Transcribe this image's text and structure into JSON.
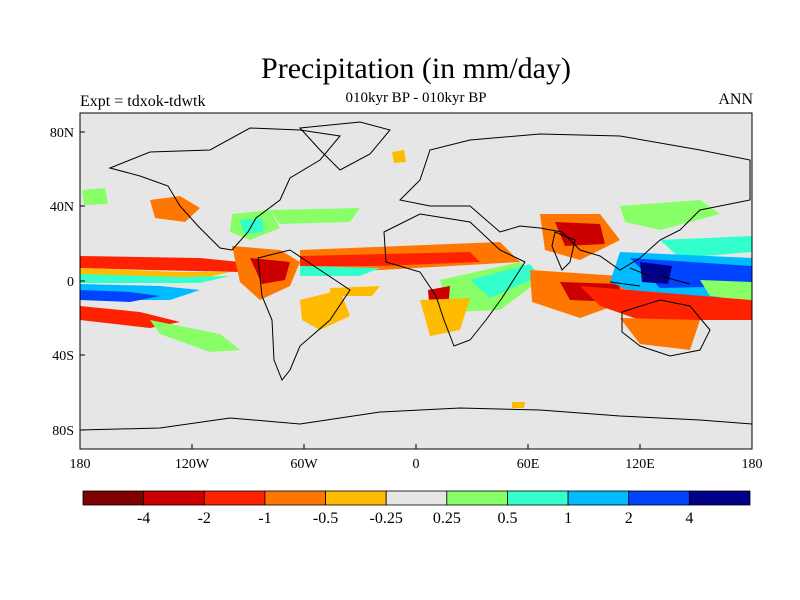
{
  "title": "Precipitation (in mm/day)",
  "subtitle": "010kyr BP - 010kyr BP",
  "left_label": "Expt = tdxok-tdwtk",
  "right_label": "ANN",
  "x_axis": {
    "ticks": [
      "180",
      "120W",
      "60W",
      "0",
      "60E",
      "120E",
      "180"
    ]
  },
  "y_axis": {
    "ticks": [
      "80N",
      "40N",
      "0",
      "40S",
      "80S"
    ]
  },
  "colorbar": {
    "colors": [
      "#800000",
      "#cc0000",
      "#ff2200",
      "#ff7700",
      "#ffbb00",
      "#e6e6e6",
      "#88ff66",
      "#33ffcc",
      "#00bbff",
      "#0044ff",
      "#000088"
    ],
    "labels": [
      "-4",
      "-2",
      "-1",
      "-0.5",
      "-0.25",
      "0.25",
      "0.5",
      "1",
      "2",
      "4"
    ]
  },
  "colors": {
    "background_land_ocean": "#e6e6e6",
    "coast": "#000000"
  }
}
